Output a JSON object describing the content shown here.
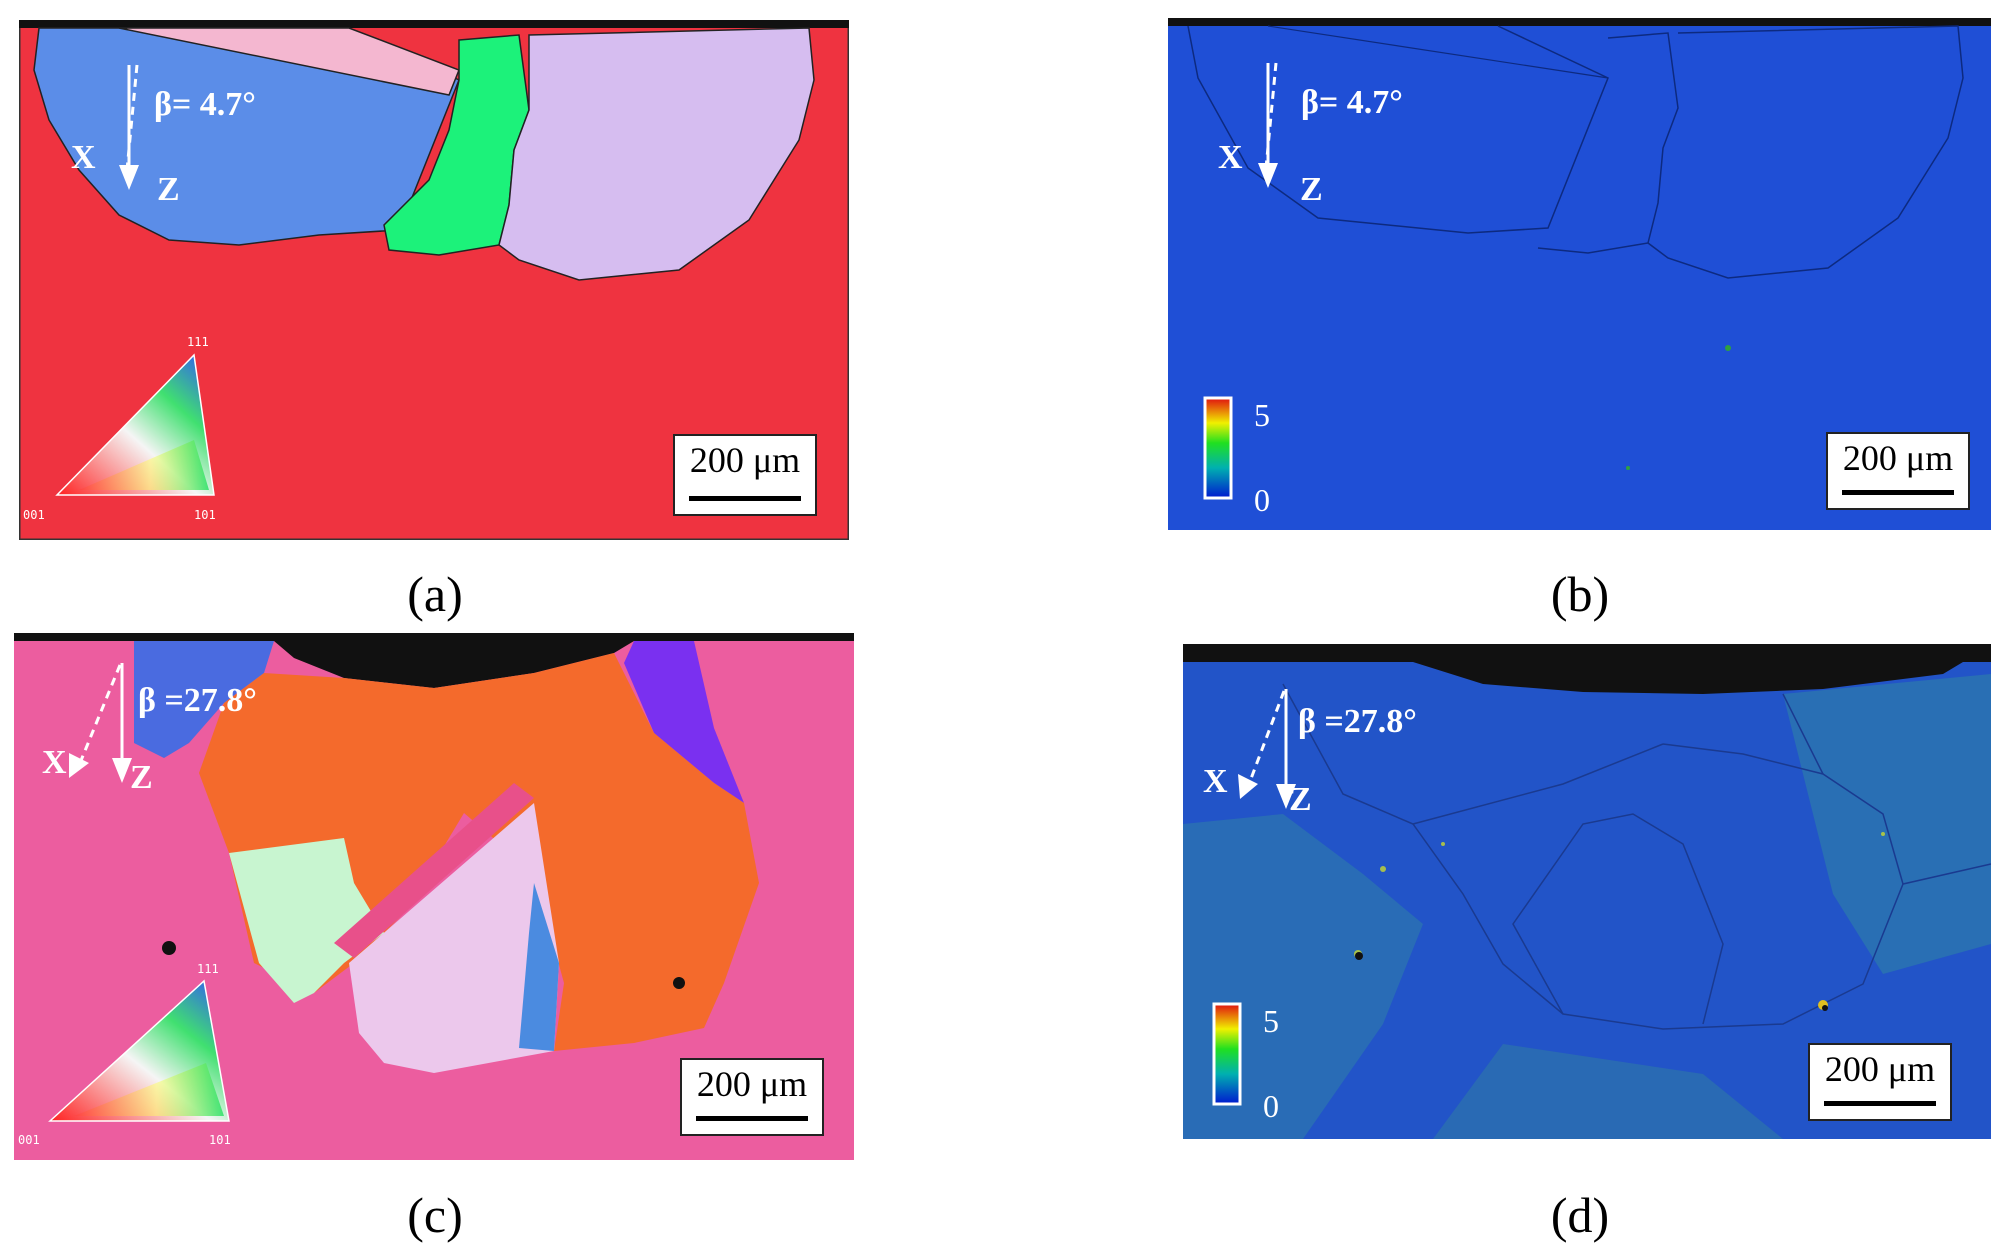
{
  "panels": [
    {
      "id": "a",
      "caption": "(a)",
      "beta": "β= 4.7°",
      "x_label": "X",
      "z_label": "Z",
      "scale": "200 μm",
      "triangle": {
        "top": "111",
        "left": "001",
        "right": "101"
      }
    },
    {
      "id": "b",
      "caption": "(b)",
      "beta": "β= 4.7°",
      "x_label": "X",
      "z_label": "Z",
      "scale": "200 μm",
      "colorbar": {
        "max": "5",
        "min": "0"
      }
    },
    {
      "id": "c",
      "caption": "(c)",
      "beta": "β =27.8°",
      "x_label": "X",
      "z_label": "Z",
      "scale": "200 μm",
      "triangle": {
        "top": "111",
        "left": "001",
        "right": "101"
      }
    },
    {
      "id": "d",
      "caption": "(d)",
      "beta": "β =27.8°",
      "x_label": "X",
      "z_label": "Z",
      "scale": "200 μm",
      "colorbar": {
        "max": "5",
        "min": "0"
      }
    }
  ],
  "colors": {
    "matrix_red": "#ef3340",
    "matrix_pink": "#ec5d9f",
    "kam_blue": "#1f4fd6",
    "grain_blue": "#5b8de8",
    "grain_lilac": "#d6bdf0",
    "grain_green": "#1cf27a",
    "grain_orange": "#f46a2c"
  }
}
